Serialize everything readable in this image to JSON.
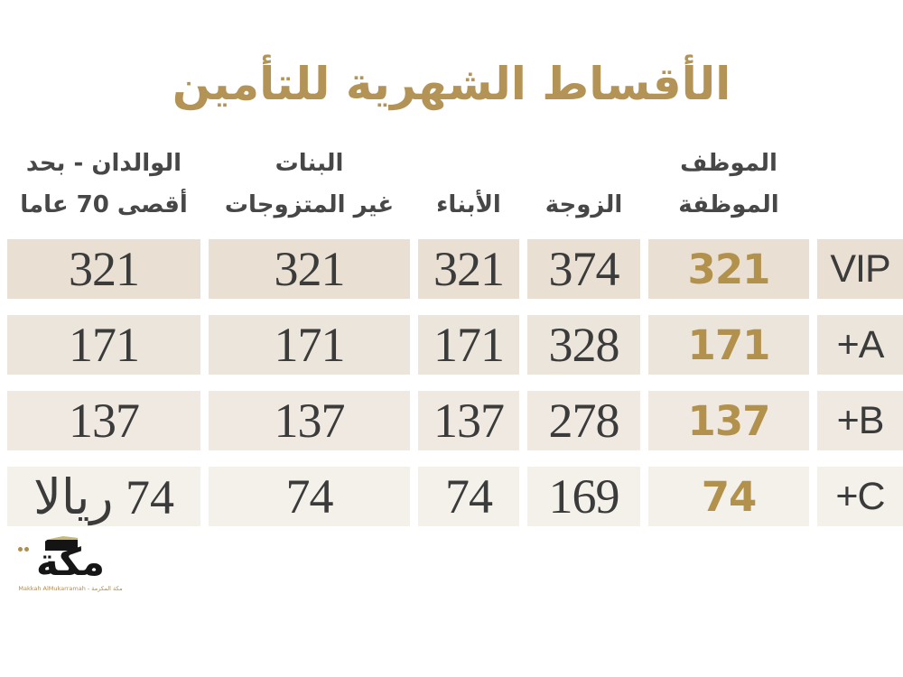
{
  "title": "الأقساط الشهرية للتأمين",
  "colors": {
    "page_bg": "#ffffff",
    "title_gold": "#b39456",
    "accent_gold": "#b2914c",
    "header_text": "#474747",
    "number_text": "#3b3b3b",
    "row_bg_1": "#e9e0d3",
    "row_bg_2": "#ece5db",
    "row_bg_3": "#efe9e1",
    "row_bg_4": "#f4f1ea",
    "logo_black": "#161616",
    "logo_gold": "#b08d52"
  },
  "table": {
    "headers": {
      "category": "",
      "employee_line1": "الموظف",
      "employee_line2": "الموظفة",
      "wife": "الزوجة",
      "sons": "الأبناء",
      "daughters_line1": "البنات",
      "daughters_line2": "غير المتزوجات",
      "parents_line1": "الوالدان - بحد",
      "parents_line2": "أقصى 70 عاما"
    },
    "rows": [
      {
        "category": "VIP",
        "employee": "321",
        "wife": "374",
        "sons": "321",
        "daughters": "321",
        "parents": "321"
      },
      {
        "category": "+A",
        "employee": "171",
        "wife": "328",
        "sons": "171",
        "daughters": "171",
        "parents": "171"
      },
      {
        "category": "+B",
        "employee": "137",
        "wife": "278",
        "sons": "137",
        "daughters": "137",
        "parents": "137"
      },
      {
        "category": "+C",
        "employee": "74",
        "wife": "169",
        "sons": "74",
        "daughters": "74",
        "parents": "74 ريالا"
      }
    ]
  },
  "logo": {
    "wordmark": "مكة",
    "tagline": "Makkah AlMukarramah - مكة المكرمة"
  },
  "chart_data": {
    "type": "table",
    "title": "الأقساط الشهرية للتأمين",
    "direction": "rtl",
    "columns": [
      "",
      "الموظف الموظفة",
      "الزوجة",
      "الأبناء",
      "البنات غير المتزوجات",
      "الوالدان - بحد أقصى 70 عاما"
    ],
    "rows": [
      [
        "VIP",
        321,
        374,
        321,
        321,
        321
      ],
      [
        "+A",
        171,
        328,
        171,
        171,
        171
      ],
      [
        "+B",
        137,
        278,
        137,
        137,
        137
      ],
      [
        "+C",
        74,
        169,
        74,
        74,
        "74 ريالا"
      ]
    ],
    "notes": "values are monthly insurance premiums in Saudi riyals; employee column highlighted in gold"
  }
}
